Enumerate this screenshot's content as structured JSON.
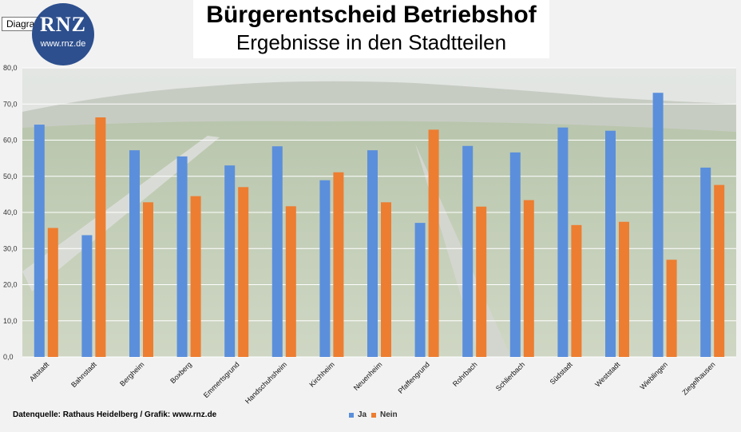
{
  "tooltip": "Diagrammbereich",
  "logo": {
    "big": "RNZ",
    "small": "www.rnz.de"
  },
  "source": "Datenquelle: Rathaus Heidelberg / Grafik: www.rnz.de",
  "colors": {
    "ja": "#5b8fdc",
    "nein": "#ed7d31",
    "grid": "#ffffff",
    "axis_text": "#333333"
  },
  "chart_data": {
    "type": "bar",
    "title": "Bürgerentscheid Betriebshof",
    "subtitle": "Ergebnisse in den Stadtteilen",
    "xlabel": "",
    "ylabel": "",
    "ylim": [
      0,
      80
    ],
    "yticks": [
      "0,0",
      "10,0",
      "20,0",
      "30,0",
      "40,0",
      "50,0",
      "60,0",
      "70,0",
      "80,0"
    ],
    "grid": true,
    "legend_position": "bottom",
    "categories": [
      "Altstadt",
      "Bahnstadt",
      "Bergheim",
      "Boxberg",
      "Emmertsgrund",
      "Handschuhsheim",
      "Kirchheim",
      "Neuenheim",
      "Pfaffengrund",
      "Rohrbach",
      "Schlierbach",
      "Südstadt",
      "Weststadt",
      "Wieblingen",
      "Ziegelhausen"
    ],
    "series": [
      {
        "name": "Ja",
        "values": [
          64.3,
          33.7,
          57.2,
          55.5,
          53.0,
          58.3,
          48.9,
          57.2,
          37.1,
          58.4,
          56.6,
          63.5,
          62.6,
          73.1,
          52.4
        ]
      },
      {
        "name": "Nein",
        "values": [
          35.7,
          66.3,
          42.8,
          44.5,
          47.0,
          41.7,
          51.1,
          42.8,
          62.9,
          41.6,
          43.4,
          36.5,
          37.4,
          26.9,
          47.6
        ]
      }
    ]
  }
}
